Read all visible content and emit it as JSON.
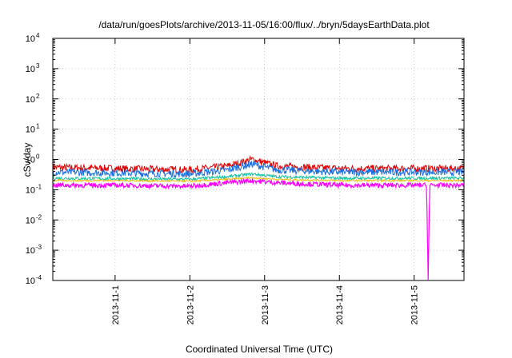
{
  "chart_data": {
    "type": "line",
    "title": "/data/run/goesPlots/archive/2013-11-05/16:00/flux/../bryn/5daysEarthData.plot",
    "xlabel": "Coordinated Universal Time (UTC)",
    "ylabel": "cSv/day",
    "y_scale": "log",
    "ylim": [
      0.0001,
      10000
    ],
    "y_ticks": [
      {
        "base": "10",
        "exp": "4",
        "value": 10000
      },
      {
        "base": "10",
        "exp": "3",
        "value": 1000
      },
      {
        "base": "10",
        "exp": "2",
        "value": 100
      },
      {
        "base": "10",
        "exp": "1",
        "value": 10
      },
      {
        "base": "10",
        "exp": "0",
        "value": 1
      },
      {
        "base": "10",
        "exp": "-1",
        "value": 0.1
      },
      {
        "base": "10",
        "exp": "-2",
        "value": 0.01
      },
      {
        "base": "10",
        "exp": "-3",
        "value": 0.001
      },
      {
        "base": "10",
        "exp": "-4",
        "value": 0.0001
      }
    ],
    "xlim": [
      "2013-10-31T04:00",
      "2013-11-05T16:00"
    ],
    "x_ticks": [
      "2013-11-1",
      "2013-11-2",
      "2013-11-3",
      "2013-11-4",
      "2013-11-5"
    ],
    "x_tick_dates": [
      "2013-11-01",
      "2013-11-02",
      "2013-11-03",
      "2013-11-04",
      "2013-11-05"
    ],
    "grid": true,
    "series": [
      {
        "color": "#e00000",
        "x": [
          "2013-10-31T04:00",
          "2013-11-01T00:00",
          "2013-11-02T00:00",
          "2013-11-02T12:00",
          "2013-11-02T20:00",
          "2013-11-03T04:00",
          "2013-11-04T00:00",
          "2013-11-05T00:00",
          "2013-11-05T16:00"
        ],
        "y": [
          0.55,
          0.5,
          0.45,
          0.6,
          1.0,
          0.6,
          0.5,
          0.5,
          0.5
        ],
        "noise": 0.12
      },
      {
        "color": "#1a6fe0",
        "x": [
          "2013-10-31T04:00",
          "2013-11-01T00:00",
          "2013-11-02T00:00",
          "2013-11-02T12:00",
          "2013-11-02T20:00",
          "2013-11-03T04:00",
          "2013-11-04T00:00",
          "2013-11-05T00:00",
          "2013-11-05T16:00"
        ],
        "y": [
          0.38,
          0.36,
          0.33,
          0.45,
          0.7,
          0.45,
          0.38,
          0.38,
          0.38
        ],
        "noise": 0.12
      },
      {
        "color": "#10c0a0",
        "x": [
          "2013-10-31T04:00",
          "2013-11-01T00:00",
          "2013-11-02T00:00",
          "2013-11-02T12:00",
          "2013-11-02T20:00",
          "2013-11-03T04:00",
          "2013-11-04T00:00",
          "2013-11-05T00:00",
          "2013-11-05T16:00"
        ],
        "y": [
          0.24,
          0.23,
          0.22,
          0.27,
          0.33,
          0.27,
          0.24,
          0.24,
          0.24
        ],
        "noise": 0.05
      },
      {
        "color": "#e8c010",
        "x": [
          "2013-10-31T04:00",
          "2013-11-01T00:00",
          "2013-11-02T00:00",
          "2013-11-02T12:00",
          "2013-11-02T20:00",
          "2013-11-03T04:00",
          "2013-11-04T00:00",
          "2013-11-05T00:00",
          "2013-11-05T16:00"
        ],
        "y": [
          0.2,
          0.2,
          0.19,
          0.22,
          0.25,
          0.22,
          0.2,
          0.2,
          0.2
        ],
        "noise": 0.03
      },
      {
        "color": "#ff00ff",
        "x": [
          "2013-10-31T04:00",
          "2013-11-01T00:00",
          "2013-11-02T00:00",
          "2013-11-02T12:00",
          "2013-11-02T20:00",
          "2013-11-03T04:00",
          "2013-11-04T00:00",
          "2013-11-05T00:00",
          "2013-11-05T04:00",
          "2013-11-05T04:30",
          "2013-11-05T05:00",
          "2013-11-05T16:00"
        ],
        "y": [
          0.14,
          0.14,
          0.13,
          0.17,
          0.2,
          0.17,
          0.14,
          0.14,
          0.14,
          0.0001,
          0.14,
          0.14
        ],
        "noise": 0.08
      }
    ]
  }
}
